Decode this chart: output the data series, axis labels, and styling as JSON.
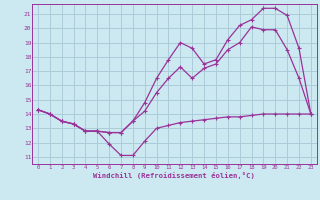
{
  "bg_color": "#cce8f0",
  "grid_color": "#aaccd8",
  "line_color": "#993399",
  "xlabel": "Windchill (Refroidissement éolien,°C)",
  "xlim": [
    -0.5,
    23.5
  ],
  "ylim": [
    10.5,
    21.7
  ],
  "yticks": [
    11,
    12,
    13,
    14,
    15,
    16,
    17,
    18,
    19,
    20,
    21
  ],
  "xticks": [
    0,
    1,
    2,
    3,
    4,
    5,
    6,
    7,
    8,
    9,
    10,
    11,
    12,
    13,
    14,
    15,
    16,
    17,
    18,
    19,
    20,
    21,
    22,
    23
  ],
  "line1_x": [
    0,
    1,
    2,
    3,
    4,
    5,
    6,
    7,
    8,
    9,
    10,
    11,
    12,
    13,
    14,
    15,
    16,
    17,
    18,
    19,
    20,
    21,
    22,
    23
  ],
  "line1_y": [
    14.3,
    14.0,
    13.5,
    13.3,
    12.8,
    12.8,
    11.9,
    11.1,
    11.1,
    12.1,
    13.0,
    13.2,
    13.4,
    13.5,
    13.6,
    13.7,
    13.8,
    13.8,
    13.9,
    14.0,
    14.0,
    14.0,
    14.0,
    14.0
  ],
  "line2_x": [
    0,
    1,
    2,
    3,
    4,
    5,
    6,
    7,
    8,
    9,
    10,
    11,
    12,
    13,
    14,
    15,
    16,
    17,
    18,
    19,
    20,
    21,
    22,
    23
  ],
  "line2_y": [
    14.3,
    14.0,
    13.5,
    13.3,
    12.8,
    12.8,
    12.7,
    12.7,
    13.5,
    14.2,
    15.5,
    16.5,
    17.3,
    16.5,
    17.2,
    17.5,
    18.5,
    19.0,
    20.1,
    19.9,
    19.9,
    18.5,
    16.5,
    14.0
  ],
  "line3_x": [
    0,
    1,
    2,
    3,
    4,
    5,
    6,
    7,
    8,
    9,
    10,
    11,
    12,
    13,
    14,
    15,
    16,
    17,
    18,
    19,
    20,
    21,
    22,
    23
  ],
  "line3_y": [
    14.3,
    14.0,
    13.5,
    13.3,
    12.8,
    12.8,
    12.7,
    12.7,
    13.5,
    14.8,
    16.5,
    17.8,
    19.0,
    18.6,
    17.5,
    17.8,
    19.2,
    20.2,
    20.6,
    21.4,
    21.4,
    20.9,
    18.6,
    14.0
  ]
}
